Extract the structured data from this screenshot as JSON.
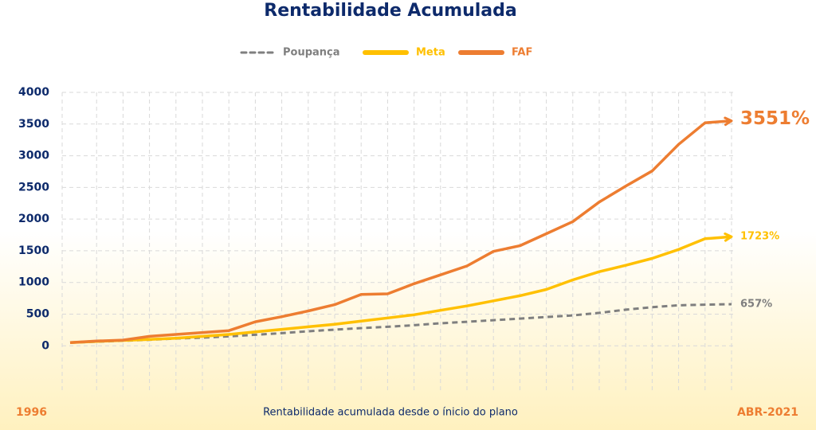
{
  "chart_data": {
    "type": "line",
    "title": "Rentabilidade Acumulada",
    "xlabel": "Rentabilidade acumulada desde o ínicio do plano",
    "categories": [
      "1996",
      null,
      null,
      null,
      null,
      null,
      null,
      null,
      null,
      null,
      null,
      null,
      null,
      null,
      null,
      null,
      null,
      null,
      null,
      null,
      null,
      null,
      null,
      null,
      null,
      "ABR-2021"
    ],
    "ylim": [
      -700,
      4000
    ],
    "yticks": [
      0,
      500,
      1000,
      1500,
      2000,
      2500,
      3000,
      3500,
      4000
    ],
    "grid": true,
    "series": [
      {
        "name": "Poupança",
        "color": "#7f7f7f",
        "dashed": true,
        "arrow": false,
        "values": [
          50,
          65,
          80,
          95,
          115,
          130,
          150,
          175,
          200,
          230,
          255,
          280,
          300,
          325,
          355,
          380,
          405,
          430,
          455,
          480,
          520,
          570,
          610,
          640,
          650,
          657
        ],
        "value_labels": [
          null,
          null,
          null,
          null,
          null,
          null,
          null,
          null,
          null,
          null,
          null,
          null,
          null,
          null,
          null,
          null,
          null,
          null,
          null,
          null,
          null,
          null,
          null,
          null,
          null,
          "657%"
        ]
      },
      {
        "name": "Meta",
        "color": "#ffc000",
        "dashed": false,
        "arrow": true,
        "values": [
          50,
          70,
          85,
          100,
          120,
          150,
          180,
          220,
          260,
          300,
          340,
          390,
          440,
          490,
          560,
          630,
          710,
          790,
          890,
          1040,
          1170,
          1270,
          1380,
          1520,
          1690,
          1723
        ],
        "value_labels": [
          null,
          null,
          null,
          null,
          null,
          null,
          null,
          null,
          null,
          null,
          null,
          null,
          null,
          null,
          null,
          null,
          null,
          null,
          null,
          null,
          null,
          null,
          null,
          null,
          null,
          "1723%"
        ]
      },
      {
        "name": "FAF",
        "color": "#ed7d31",
        "dashed": false,
        "arrow": true,
        "values": [
          50,
          75,
          90,
          150,
          180,
          210,
          240,
          380,
          460,
          550,
          650,
          810,
          820,
          980,
          1120,
          1260,
          1490,
          1580,
          1770,
          1960,
          2270,
          2520,
          2760,
          3180,
          3520,
          3551
        ],
        "value_labels": [
          null,
          null,
          null,
          null,
          null,
          null,
          null,
          null,
          null,
          null,
          null,
          null,
          null,
          null,
          null,
          null,
          null,
          null,
          null,
          null,
          null,
          null,
          null,
          null,
          null,
          "3551%"
        ]
      }
    ]
  }
}
